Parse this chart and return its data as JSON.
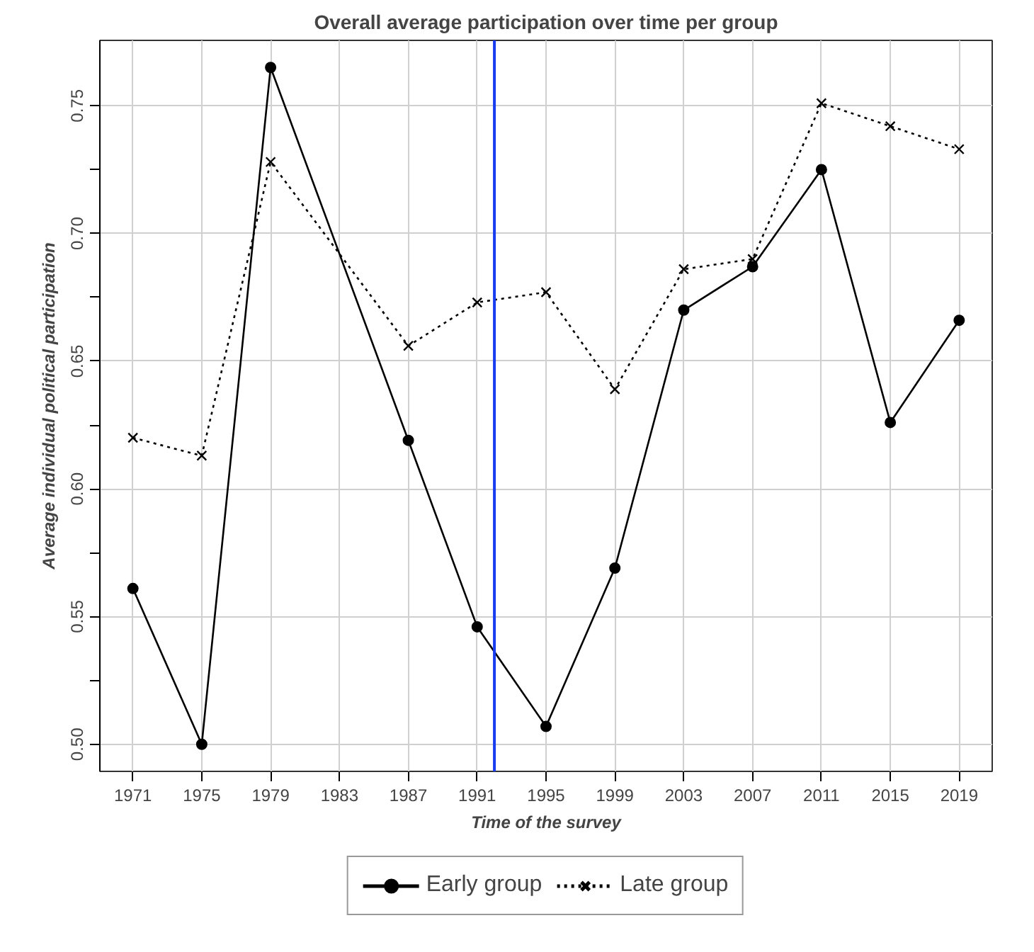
{
  "chart_data": {
    "type": "line",
    "title": "Overall average participation over time per group",
    "xlabel": "Time of the survey",
    "ylabel": "Average individual political participation",
    "x": [
      1971,
      1975,
      1979,
      1987,
      1991,
      1995,
      1999,
      2003,
      2007,
      2011,
      2015,
      2019
    ],
    "series": [
      {
        "name": "Early group",
        "color": "#000000",
        "marker": "circle",
        "line_style": "solid",
        "values": [
          0.561,
          0.5,
          0.765,
          0.619,
          0.546,
          0.507,
          0.569,
          0.67,
          0.687,
          0.725,
          0.626,
          0.666
        ]
      },
      {
        "name": "Late group",
        "color": "#000000",
        "marker": "cross",
        "line_style": "dotted",
        "values": [
          0.62,
          0.613,
          0.728,
          0.656,
          0.673,
          0.677,
          0.639,
          0.686,
          0.69,
          0.751,
          0.742,
          0.733
        ]
      }
    ],
    "xlim": [
      1969.08,
      2020.92
    ],
    "ylim": [
      0.4894,
      0.7756
    ],
    "xticks": [
      1971,
      1975,
      1979,
      1983,
      1987,
      1991,
      1995,
      1999,
      2003,
      2007,
      2011,
      2015,
      2019
    ],
    "yticks": [
      {
        "value": 0.5,
        "label": "0.50"
      },
      {
        "value": 0.525,
        "label": null
      },
      {
        "value": 0.55,
        "label": "0.55"
      },
      {
        "value": 0.575,
        "label": null
      },
      {
        "value": 0.6,
        "label": "0.60"
      },
      {
        "value": 0.625,
        "label": null
      },
      {
        "value": 0.65,
        "label": "0.65"
      },
      {
        "value": 0.675,
        "label": null
      },
      {
        "value": 0.7,
        "label": "0.70"
      },
      {
        "value": 0.725,
        "label": null
      },
      {
        "value": 0.75,
        "label": "0.75"
      }
    ],
    "ref_lines": [
      {
        "axis": "x",
        "value": 1992,
        "color": "#1a3cf0"
      }
    ],
    "grid": true,
    "legend": "bottom"
  }
}
